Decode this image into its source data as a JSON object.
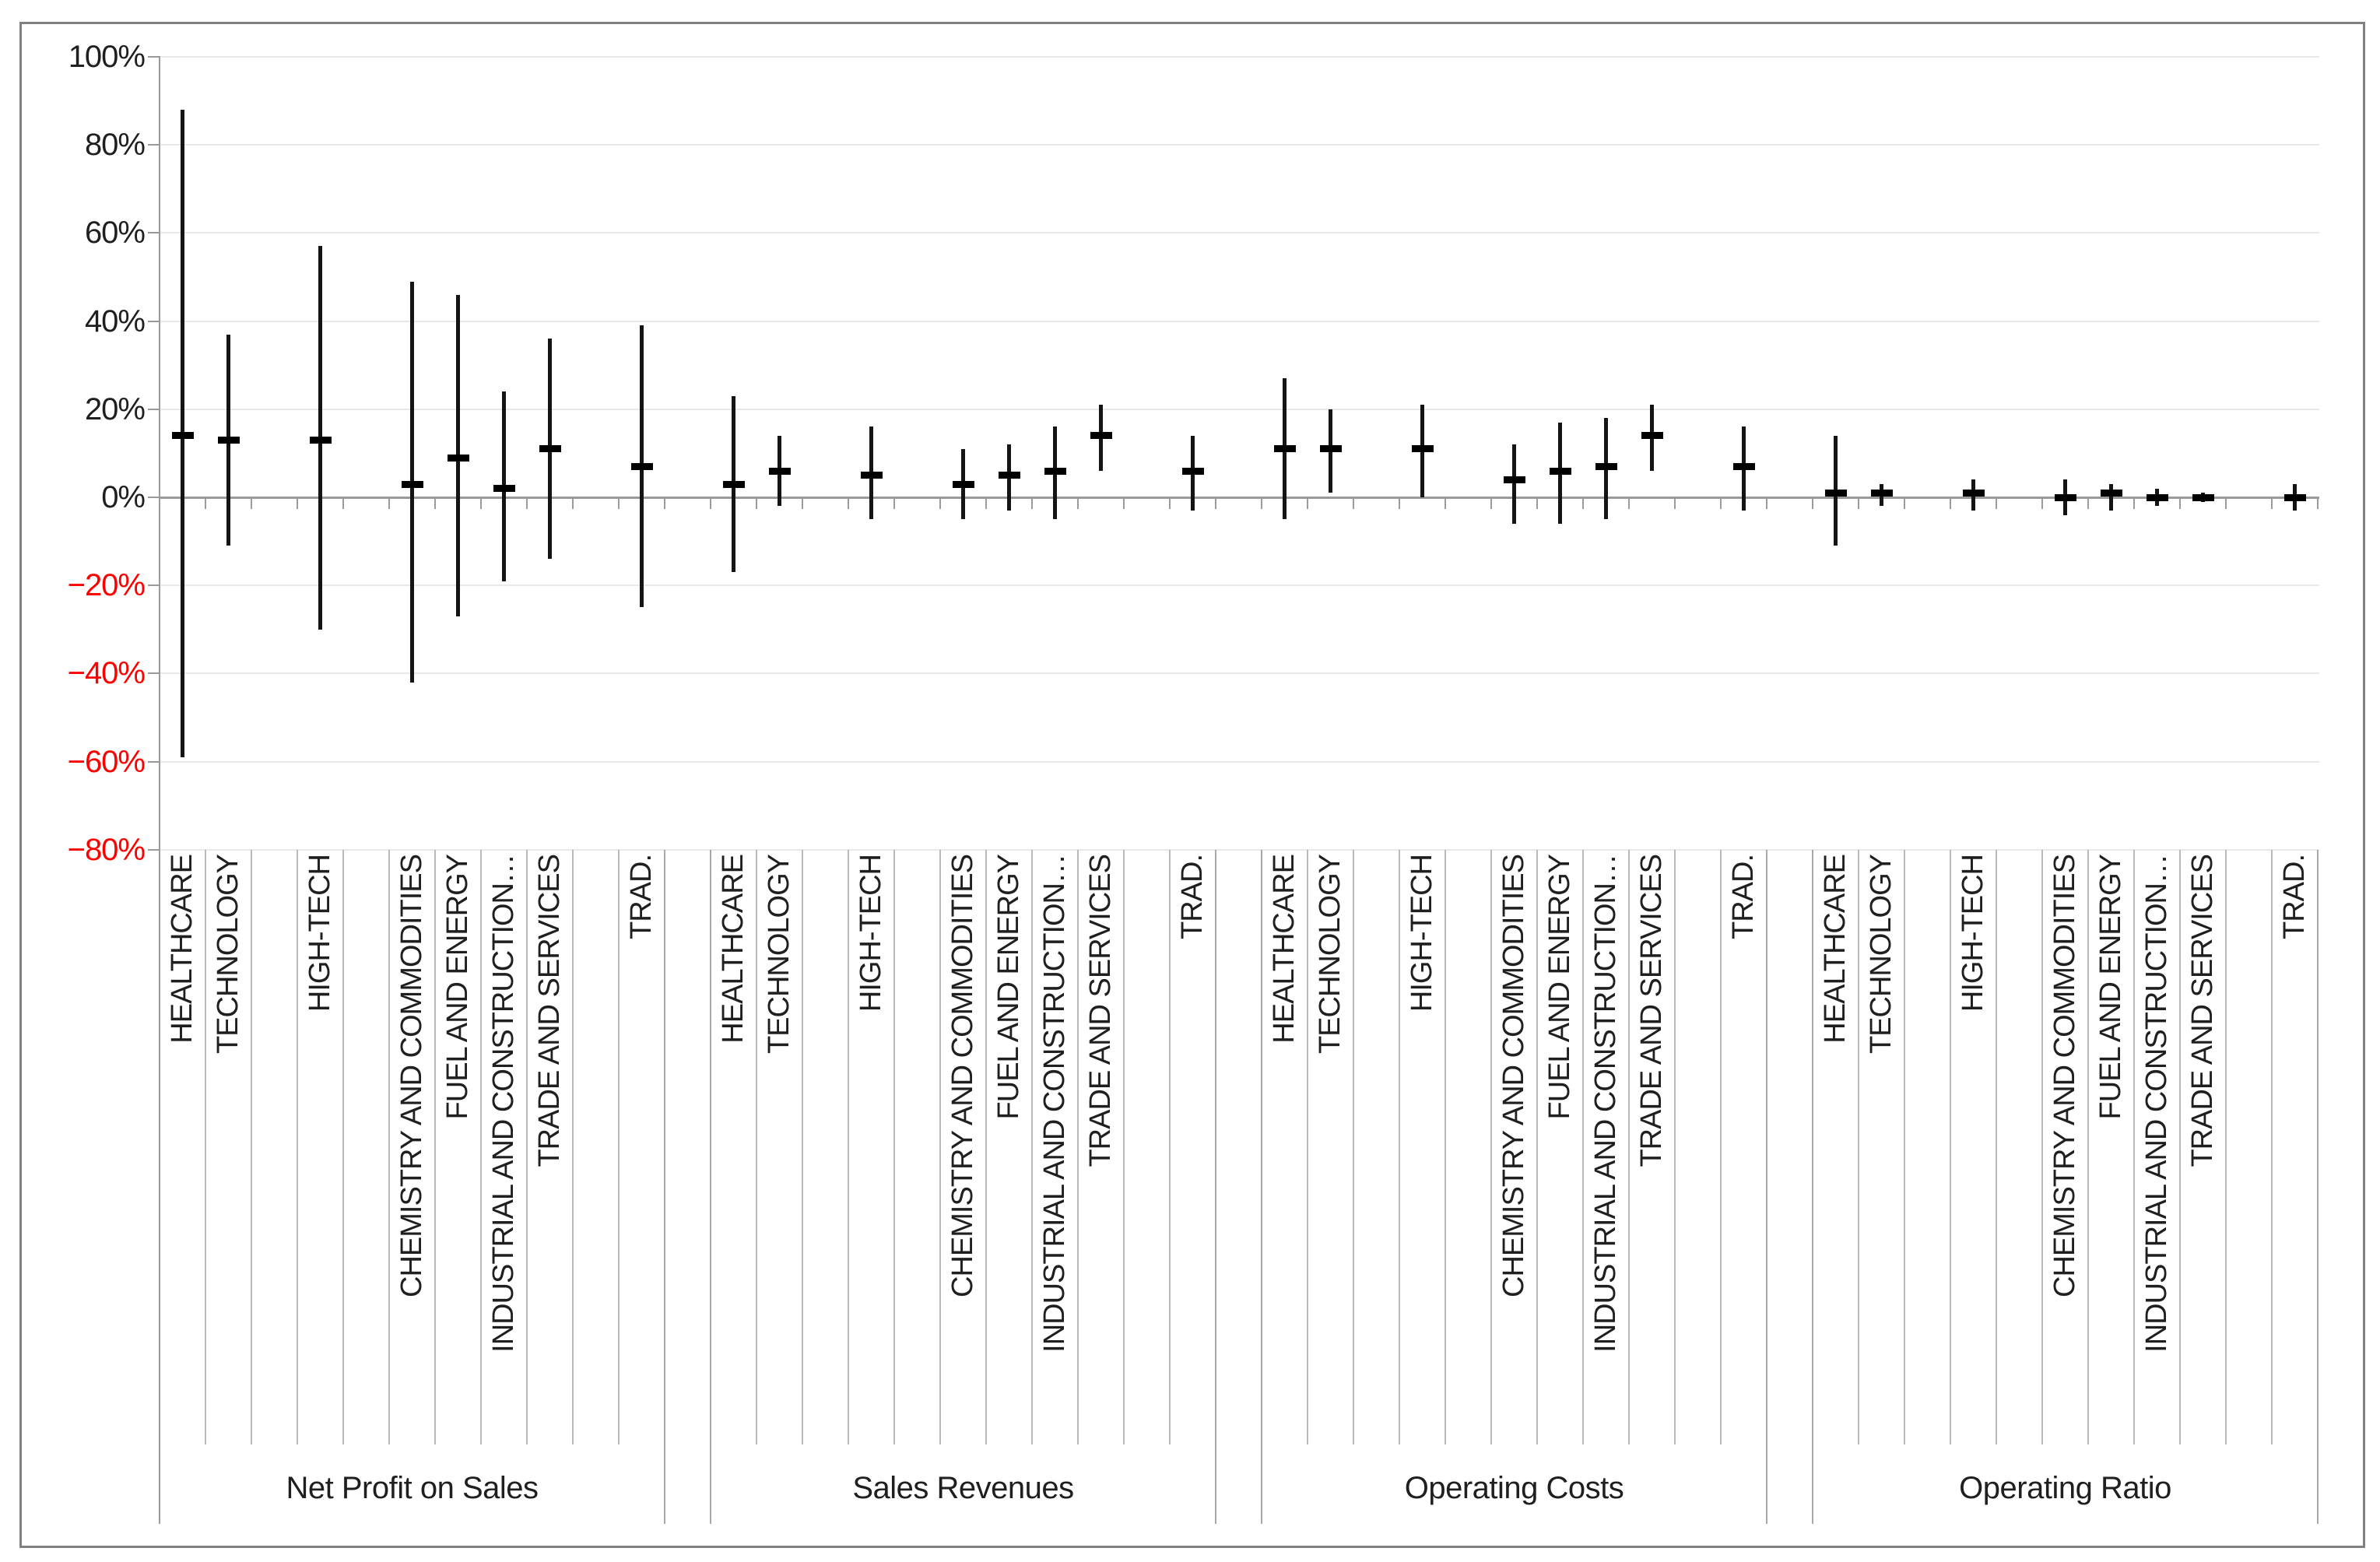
{
  "chart_data": {
    "type": "bar",
    "subtype": "high-low-range-with-median-marker",
    "title": "",
    "xlabel": "",
    "ylabel": "",
    "unit": "%",
    "y_axis": {
      "min": -80,
      "max": 100,
      "tick_step": 20,
      "tick_labels": [
        "100%",
        "80%",
        "60%",
        "40%",
        "20%",
        "0%",
        "−20%",
        "−40%",
        "−60%",
        "−80%"
      ],
      "tick_values": [
        100,
        80,
        60,
        40,
        20,
        0,
        -20,
        -40,
        -60,
        -80
      ],
      "grid": "on",
      "negative_label_color": "#ff0000",
      "positive_label_color": "#1f1f1f"
    },
    "sector_labels": [
      "HEALTHCARE",
      "TECHNOLOGY",
      "HIGH-TECH",
      "CHEMISTRY AND COMMODITIES",
      "FUEL AND ENERGY",
      "INDUSTRIAL AND CONSTRUCTION…",
      "TRADE AND SERVICES",
      "TRAD."
    ],
    "groups": [
      {
        "name": "Net Profit on Sales",
        "series": [
          {
            "sector": "HEALTHCARE",
            "high": 88,
            "mid": 14,
            "low": -59
          },
          {
            "sector": "TECHNOLOGY",
            "high": 37,
            "mid": 13,
            "low": -11
          },
          {
            "sector": "HIGH-TECH",
            "high": 57,
            "mid": 13,
            "low": -30
          },
          {
            "sector": "CHEMISTRY AND COMMODITIES",
            "high": 49,
            "mid": 3,
            "low": -42
          },
          {
            "sector": "FUEL AND ENERGY",
            "high": 46,
            "mid": 9,
            "low": -27
          },
          {
            "sector": "INDUSTRIAL AND CONSTRUCTION…",
            "high": 24,
            "mid": 2,
            "low": -19
          },
          {
            "sector": "TRADE AND SERVICES",
            "high": 36,
            "mid": 11,
            "low": -14
          },
          {
            "sector": "TRAD.",
            "high": 39,
            "mid": 7,
            "low": -25
          }
        ]
      },
      {
        "name": "Sales Revenues",
        "series": [
          {
            "sector": "HEALTHCARE",
            "high": 23,
            "mid": 3,
            "low": -17
          },
          {
            "sector": "TECHNOLOGY",
            "high": 14,
            "mid": 6,
            "low": -2
          },
          {
            "sector": "HIGH-TECH",
            "high": 16,
            "mid": 5,
            "low": -5
          },
          {
            "sector": "CHEMISTRY AND COMMODITIES",
            "high": 11,
            "mid": 3,
            "low": -5
          },
          {
            "sector": "FUEL AND ENERGY",
            "high": 12,
            "mid": 5,
            "low": -3
          },
          {
            "sector": "INDUSTRIAL AND CONSTRUCTION…",
            "high": 16,
            "mid": 6,
            "low": -5
          },
          {
            "sector": "TRADE AND SERVICES",
            "high": 21,
            "mid": 14,
            "low": 6
          },
          {
            "sector": "TRAD.",
            "high": 14,
            "mid": 6,
            "low": -3
          }
        ]
      },
      {
        "name": "Operating Costs",
        "series": [
          {
            "sector": "HEALTHCARE",
            "high": 27,
            "mid": 11,
            "low": -5
          },
          {
            "sector": "TECHNOLOGY",
            "high": 20,
            "mid": 11,
            "low": 1
          },
          {
            "sector": "HIGH-TECH",
            "high": 21,
            "mid": 11,
            "low": 0
          },
          {
            "sector": "CHEMISTRY AND COMMODITIES",
            "high": 12,
            "mid": 4,
            "low": -6
          },
          {
            "sector": "FUEL AND ENERGY",
            "high": 17,
            "mid": 6,
            "low": -6
          },
          {
            "sector": "INDUSTRIAL AND CONSTRUCTION…",
            "high": 18,
            "mid": 7,
            "low": -5
          },
          {
            "sector": "TRADE AND SERVICES",
            "high": 21,
            "mid": 14,
            "low": 6
          },
          {
            "sector": "TRAD.",
            "high": 16,
            "mid": 7,
            "low": -3
          }
        ]
      },
      {
        "name": "Operating Ratio",
        "series": [
          {
            "sector": "HEALTHCARE",
            "high": 14,
            "mid": 1,
            "low": -11
          },
          {
            "sector": "TECHNOLOGY",
            "high": 3,
            "mid": 1,
            "low": -2
          },
          {
            "sector": "HIGH-TECH",
            "high": 4,
            "mid": 1,
            "low": -3
          },
          {
            "sector": "CHEMISTRY AND COMMODITIES",
            "high": 4,
            "mid": 0,
            "low": -4
          },
          {
            "sector": "FUEL AND ENERGY",
            "high": 3,
            "mid": 1,
            "low": -3
          },
          {
            "sector": "INDUSTRIAL AND CONSTRUCTION…",
            "high": 2,
            "mid": 0,
            "low": -2
          },
          {
            "sector": "TRADE AND SERVICES",
            "high": 1,
            "mid": 0,
            "low": -1
          },
          {
            "sector": "TRAD.",
            "high": 3,
            "mid": 0,
            "low": -3
          }
        ]
      }
    ],
    "colors": {
      "bar": "#141414",
      "marker": "#000000",
      "gridline": "#e9e9e9",
      "axis": "#9a9a9a",
      "separator": "#b9b9b9",
      "frame_border": "#808080"
    },
    "legend": "none"
  }
}
